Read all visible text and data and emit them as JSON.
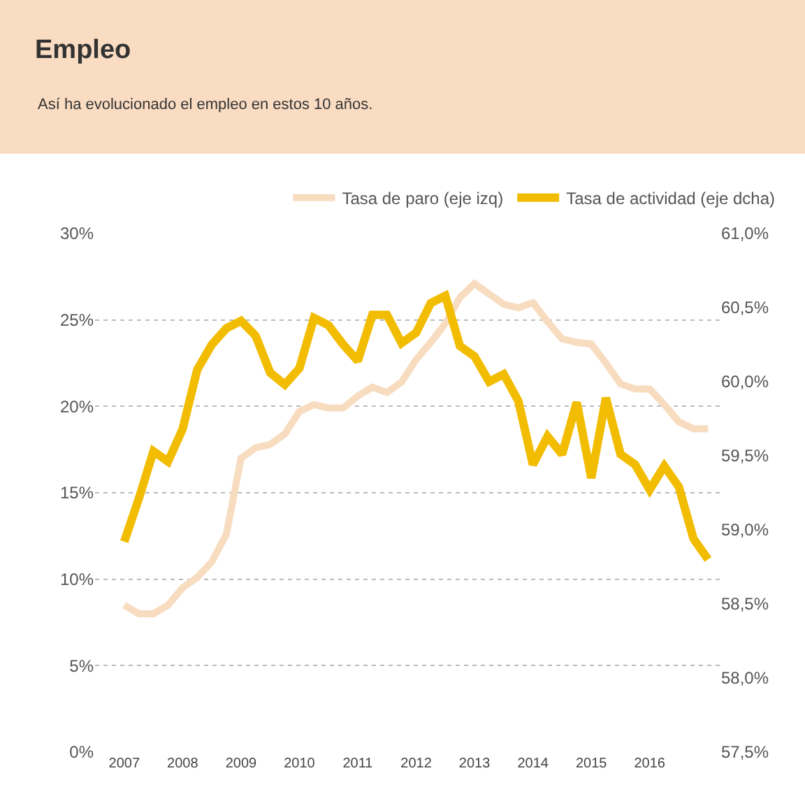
{
  "chart_data": {
    "type": "line",
    "title": "Empleo",
    "subtitle": "Así ha evolucionado el empleo en estos 10 años.",
    "x": [
      2007,
      2007.25,
      2007.5,
      2007.75,
      2008,
      2008.25,
      2008.5,
      2008.75,
      2009,
      2009.25,
      2009.5,
      2009.75,
      2010,
      2010.25,
      2010.5,
      2010.75,
      2011,
      2011.25,
      2011.5,
      2011.75,
      2012,
      2012.25,
      2012.5,
      2012.75,
      2013,
      2013.25,
      2013.5,
      2013.75,
      2014,
      2014.25,
      2014.5,
      2014.75,
      2015,
      2015.25,
      2015.5,
      2015.75,
      2016,
      2016.25,
      2016.5,
      2016.75,
      2017
    ],
    "series": [
      {
        "name": "Tasa de paro (eje izq)",
        "color": "#f8dcc0",
        "values": [
          8.5,
          8.0,
          8.0,
          8.5,
          9.5,
          10.1,
          11.0,
          12.6,
          17.0,
          17.6,
          17.8,
          18.4,
          19.7,
          20.1,
          19.9,
          19.9,
          20.6,
          21.1,
          20.8,
          21.4,
          22.7,
          23.7,
          24.8,
          26.3,
          27.1,
          26.5,
          25.9,
          25.7,
          26.0,
          24.9,
          23.9,
          23.7,
          23.6,
          22.5,
          21.3,
          21.0,
          21.0,
          20.1,
          19.1,
          18.7,
          18.7
        ]
      },
      {
        "name": "Tasa de actividad (eje dcha)",
        "color": "#f2bc00",
        "axis": "y2",
        "values": [
          58.92,
          59.21,
          59.53,
          59.46,
          59.68,
          60.08,
          60.25,
          60.36,
          60.41,
          60.31,
          60.06,
          59.98,
          60.09,
          60.43,
          60.38,
          60.25,
          60.14,
          60.45,
          60.45,
          60.26,
          60.33,
          60.53,
          60.58,
          60.24,
          60.17,
          60.0,
          60.05,
          59.87,
          59.44,
          59.63,
          59.51,
          59.86,
          59.35,
          59.89,
          59.51,
          59.44,
          59.27,
          59.43,
          59.29,
          58.94,
          58.8
        ]
      }
    ],
    "xlim": [
      2006.5,
      2017.2
    ],
    "xticks": [
      2007,
      2008,
      2009,
      2010,
      2011,
      2012,
      2013,
      2014,
      2015,
      2016
    ],
    "ylim": [
      0,
      30
    ],
    "yticks": [
      {
        "value": 0,
        "label": "0%"
      },
      {
        "value": 5,
        "label": "5%"
      },
      {
        "value": 10,
        "label": "10%"
      },
      {
        "value": 15,
        "label": "15%"
      },
      {
        "value": 20,
        "label": "20%"
      },
      {
        "value": 25,
        "label": "25%"
      },
      {
        "value": 30,
        "label": "30%"
      }
    ],
    "y2lim": [
      57.5,
      61.0
    ],
    "y2ticks": [
      {
        "value": 57.5,
        "label": "57,5%"
      },
      {
        "value": 58.0,
        "label": "58,0%"
      },
      {
        "value": 58.5,
        "label": "58,5%"
      },
      {
        "value": 59.0,
        "label": "59,0%"
      },
      {
        "value": 59.5,
        "label": "59,5%"
      },
      {
        "value": 60.0,
        "label": "60,0%"
      },
      {
        "value": 60.5,
        "label": "60,5%"
      },
      {
        "value": 61.0,
        "label": "61,0%"
      }
    ],
    "grid": "y",
    "legend": "top right",
    "marker": "none",
    "line_style": "solid"
  }
}
